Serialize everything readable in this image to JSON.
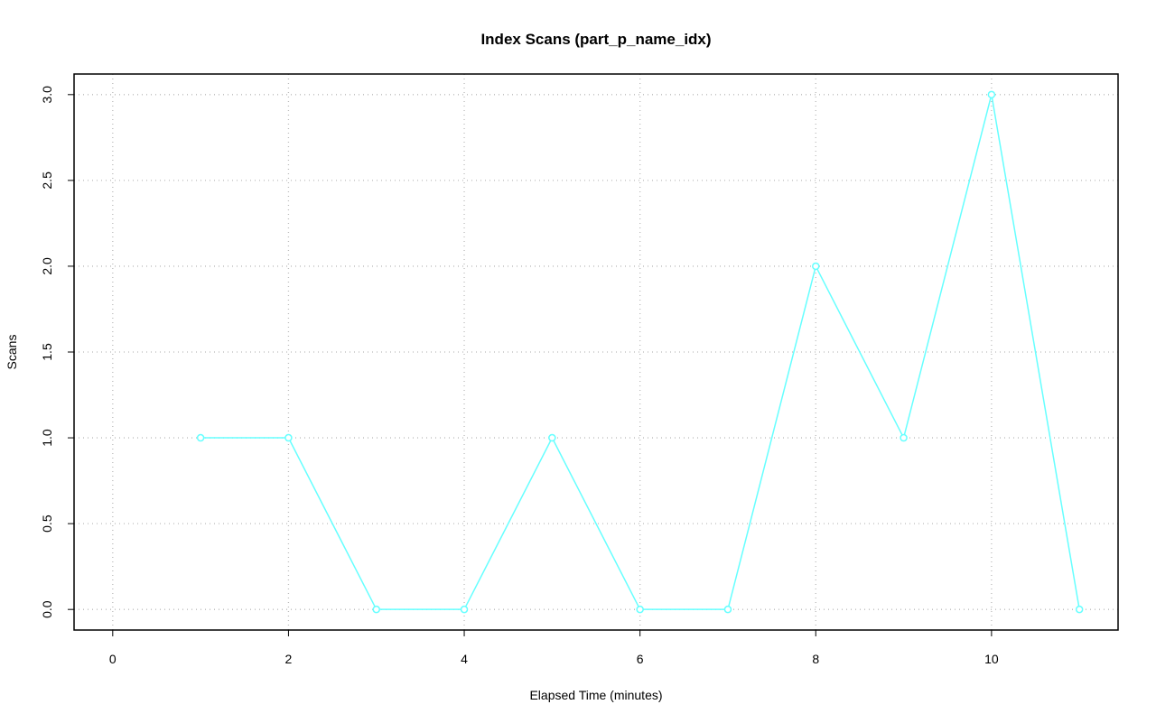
{
  "chart_data": {
    "type": "line",
    "title": "Index Scans (part_p_name_idx)",
    "x_label": "Elapsed Time (minutes)",
    "y_label": "Scans",
    "x": [
      1,
      2,
      3,
      4,
      5,
      6,
      7,
      8,
      9,
      10,
      11
    ],
    "series": [
      {
        "color": "#66ffff",
        "values": [
          1,
          1,
          0,
          0,
          1,
          0,
          0,
          2,
          1,
          3,
          0
        ]
      }
    ],
    "xlim": [
      -0.44,
      11.44
    ],
    "xticks": [
      0,
      2,
      4,
      6,
      8,
      10
    ],
    "ylim": [
      -0.12,
      3.12
    ],
    "yticks": [
      {
        "value": 0,
        "label": "0.0"
      },
      {
        "value": 0.5,
        "label": "0.5"
      },
      {
        "value": 1,
        "label": "1.0"
      },
      {
        "value": 1.5,
        "label": "1.5"
      },
      {
        "value": 2,
        "label": "2.0"
      },
      {
        "value": 2.5,
        "label": "2.5"
      },
      {
        "value": 3,
        "label": "3.0"
      }
    ],
    "grid": true
  }
}
